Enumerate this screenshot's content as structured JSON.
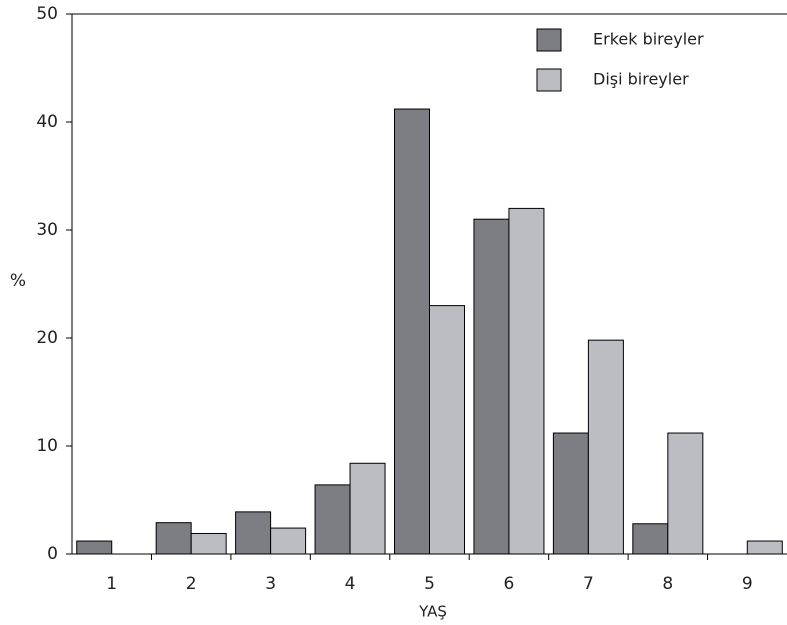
{
  "chart_data": {
    "type": "bar",
    "x_label": "YAŞ",
    "y_label": "%",
    "categories": [
      "1",
      "2",
      "3",
      "4",
      "5",
      "6",
      "7",
      "8",
      "9"
    ],
    "series": [
      {
        "name": "Erkek bireyler",
        "color": "#7d7d84",
        "values": [
          1.2,
          2.9,
          3.9,
          6.4,
          41.2,
          31.0,
          11.2,
          2.8,
          0
        ]
      },
      {
        "name": "Dişi bireyler",
        "color": "#bcbdc2",
        "values": [
          0,
          1.9,
          2.4,
          8.4,
          23.0,
          32.0,
          19.8,
          11.2,
          1.2
        ]
      }
    ],
    "ylim": [
      0,
      50
    ],
    "yticks": [
      0,
      10,
      20,
      30,
      40,
      50
    ],
    "grid": false,
    "legend": "top-right"
  }
}
